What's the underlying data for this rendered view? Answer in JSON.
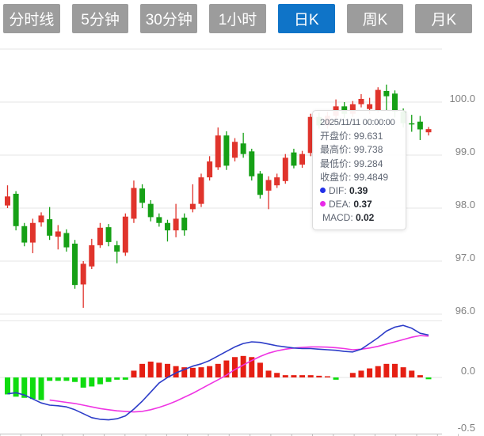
{
  "tabs": [
    {
      "label": "分时线",
      "active": false
    },
    {
      "label": "5分钟",
      "active": false
    },
    {
      "label": "30分钟",
      "active": false
    },
    {
      "label": "1小时",
      "active": false
    },
    {
      "label": "日K",
      "active": true
    },
    {
      "label": "周K",
      "active": false
    },
    {
      "label": "月K",
      "active": false
    }
  ],
  "tooltip": {
    "datetime": "2025/11/11 00:00:00",
    "rows": [
      {
        "label": "开盘价: ",
        "value": "99.631"
      },
      {
        "label": "最高价: ",
        "value": "99.738"
      },
      {
        "label": "最低价: ",
        "value": "99.284"
      },
      {
        "label": "收盘价: ",
        "value": "99.4849"
      }
    ],
    "indicators": [
      {
        "label": "DIF: ",
        "value": "0.39"
      },
      {
        "label": "DEA: ",
        "value": "0.37"
      },
      {
        "label": "MACD: ",
        "value": "0.02"
      }
    ],
    "dif_dot_color": "#2331e8",
    "dea_dot_color": "#e828e8"
  },
  "chart_data": {
    "type": "candlestick+macd",
    "x_count": 51,
    "hovered_index": 49,
    "price_axis": {
      "gridline_values": [
        101,
        100,
        99,
        98,
        97,
        96
      ],
      "labels": [
        {
          "text": "100.0",
          "value": 100
        },
        {
          "text": "99.0",
          "value": 99
        },
        {
          "text": "98.0",
          "value": 98
        },
        {
          "text": "97.0",
          "value": 97
        },
        {
          "text": "96.0",
          "value": 96
        }
      ],
      "ylim": [
        95.9,
        101.0
      ]
    },
    "macd_axis": {
      "gridline_values": [
        0.5,
        0,
        -0.5
      ],
      "labels": [
        {
          "text": "0.0",
          "value": 0
        },
        {
          "text": "-0.5",
          "value": -0.5
        }
      ],
      "ylim": [
        -0.5,
        0.5
      ]
    },
    "candles": [
      [
        98.05,
        98.43,
        98.0,
        98.22
      ],
      [
        98.27,
        98.32,
        97.58,
        97.66
      ],
      [
        97.66,
        97.72,
        97.28,
        97.35
      ],
      [
        97.35,
        97.8,
        97.15,
        97.72
      ],
      [
        97.73,
        97.92,
        97.65,
        97.86
      ],
      [
        97.79,
        98.02,
        97.4,
        97.48
      ],
      [
        97.46,
        97.68,
        97.22,
        97.56
      ],
      [
        97.53,
        97.6,
        97.18,
        97.26
      ],
      [
        97.33,
        97.4,
        96.48,
        96.55
      ],
      [
        96.56,
        97.0,
        96.12,
        96.95
      ],
      [
        96.9,
        97.42,
        96.85,
        97.3
      ],
      [
        97.3,
        97.72,
        97.25,
        97.63
      ],
      [
        97.64,
        97.7,
        97.28,
        97.36
      ],
      [
        97.3,
        97.38,
        96.96,
        97.18
      ],
      [
        97.16,
        97.9,
        97.1,
        97.84
      ],
      [
        97.8,
        98.52,
        97.72,
        98.38
      ],
      [
        98.37,
        98.45,
        98.0,
        98.1
      ],
      [
        98.08,
        98.15,
        97.75,
        97.83
      ],
      [
        97.83,
        97.9,
        97.65,
        97.72
      ],
      [
        97.72,
        97.78,
        97.37,
        97.58
      ],
      [
        97.58,
        98.08,
        97.45,
        97.8
      ],
      [
        97.82,
        97.9,
        97.48,
        97.58
      ],
      [
        97.98,
        98.45,
        97.92,
        98.08
      ],
      [
        98.08,
        98.65,
        98.02,
        98.58
      ],
      [
        98.58,
        98.98,
        98.52,
        98.88
      ],
      [
        98.77,
        99.52,
        98.72,
        99.37
      ],
      [
        99.37,
        99.45,
        98.72,
        98.8
      ],
      [
        98.95,
        99.32,
        98.88,
        99.25
      ],
      [
        99.22,
        99.42,
        98.95,
        99.02
      ],
      [
        99.07,
        99.12,
        98.52,
        98.6
      ],
      [
        98.65,
        98.7,
        98.18,
        98.25
      ],
      [
        98.33,
        98.6,
        97.98,
        98.53
      ],
      [
        98.43,
        98.65,
        98.38,
        98.58
      ],
      [
        98.51,
        99.02,
        98.46,
        98.95
      ],
      [
        99.05,
        99.12,
        98.75,
        98.8
      ],
      [
        98.82,
        99.08,
        98.76,
        99.02
      ],
      [
        99.04,
        99.78,
        98.98,
        99.72
      ],
      [
        99.72,
        99.8,
        99.5,
        99.56
      ],
      [
        99.56,
        99.82,
        99.5,
        99.74
      ],
      [
        99.74,
        100.05,
        99.68,
        99.92
      ],
      [
        99.92,
        100.0,
        99.7,
        99.78
      ],
      [
        99.78,
        100.02,
        99.72,
        99.96
      ],
      [
        99.96,
        100.15,
        99.9,
        100.06
      ],
      [
        99.87,
        100.08,
        99.78,
        99.96
      ],
      [
        99.84,
        100.28,
        99.8,
        100.23
      ],
      [
        100.21,
        100.33,
        99.85,
        100.11
      ],
      [
        100.16,
        100.22,
        99.71,
        99.82
      ],
      [
        99.82,
        99.88,
        99.52,
        99.6
      ],
      [
        99.6,
        99.76,
        99.44,
        99.59
      ],
      [
        99.631,
        99.738,
        99.284,
        99.4849
      ],
      [
        99.43,
        99.53,
        99.37,
        99.49
      ]
    ],
    "macd": {
      "hist": [
        -0.15,
        -0.17,
        -0.18,
        -0.19,
        -0.2,
        -0.03,
        -0.03,
        -0.03,
        -0.04,
        -0.09,
        -0.08,
        -0.06,
        -0.04,
        -0.02,
        -0.02,
        0.06,
        0.12,
        0.14,
        0.13,
        0.12,
        0.1,
        0.09,
        0.085,
        0.09,
        0.1,
        0.12,
        0.15,
        0.18,
        0.19,
        0.18,
        0.13,
        0.06,
        0.04,
        0.02,
        0.02,
        0.02,
        0.02,
        0.015,
        0.01,
        -0.02,
        0.0,
        0.04,
        0.06,
        0.08,
        0.1,
        0.12,
        0.12,
        0.09,
        0.06,
        0.02,
        -0.016
      ],
      "dif": [
        -0.145,
        -0.135,
        -0.155,
        -0.19,
        -0.225,
        -0.245,
        -0.25,
        -0.26,
        -0.285,
        -0.32,
        -0.355,
        -0.37,
        -0.375,
        -0.365,
        -0.34,
        -0.28,
        -0.21,
        -0.13,
        -0.05,
        0.0,
        0.04,
        0.07,
        0.1,
        0.12,
        0.15,
        0.19,
        0.23,
        0.27,
        0.3,
        0.315,
        0.31,
        0.295,
        0.28,
        0.27,
        0.26,
        0.255,
        0.255,
        0.25,
        0.245,
        0.24,
        0.23,
        0.225,
        0.25,
        0.3,
        0.35,
        0.41,
        0.445,
        0.46,
        0.435,
        0.39,
        0.375
      ],
      "dea": [
        null,
        null,
        null,
        null,
        null,
        -0.2,
        -0.21,
        -0.22,
        -0.23,
        -0.245,
        -0.26,
        -0.275,
        -0.285,
        -0.295,
        -0.3,
        -0.305,
        -0.3,
        -0.285,
        -0.265,
        -0.24,
        -0.21,
        -0.175,
        -0.14,
        -0.1,
        -0.06,
        -0.02,
        0.02,
        0.07,
        0.11,
        0.15,
        0.185,
        0.215,
        0.235,
        0.25,
        0.26,
        0.265,
        0.27,
        0.27,
        0.268,
        0.263,
        0.255,
        0.245,
        0.25,
        0.26,
        0.275,
        0.295,
        0.315,
        0.335,
        0.355,
        0.37,
        0.365
      ]
    },
    "colors": {
      "up": "#e0342c",
      "down": "#16a016",
      "hist_up": "#e51f13",
      "hist_down": "#0fdc0f",
      "dif_line": "#2c3cc8",
      "dea_line": "#ef35e3",
      "gridline": "#e6e6e6",
      "axis_line": "#bfbfbf",
      "axis_text": "#828282",
      "tab_bg": "#9c9c9c",
      "tab_active_bg": "#0f74c8"
    }
  }
}
